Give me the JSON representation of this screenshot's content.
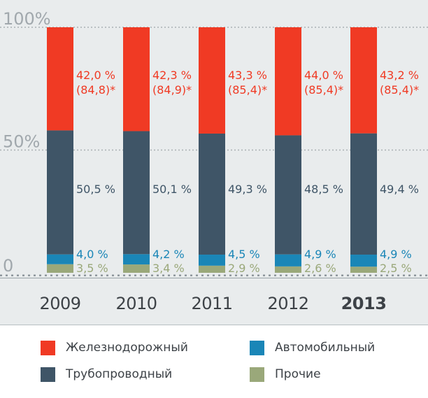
{
  "chart_data": {
    "type": "bar",
    "stacked": true,
    "categories": [
      "2009",
      "2010",
      "2011",
      "2012",
      "2013"
    ],
    "highlight_category": "2013",
    "ylim": [
      0,
      100
    ],
    "yticks": [
      {
        "value": 100,
        "label": "100%"
      },
      {
        "value": 50,
        "label": "50%"
      },
      {
        "value": 0,
        "label": "0"
      }
    ],
    "grid": true,
    "series": [
      {
        "name": "Прочие",
        "color": "#9aa87a",
        "values": [
          3.5,
          3.4,
          2.9,
          2.6,
          2.5
        ],
        "labels": [
          "3,5 %",
          "3,4 %",
          "2,9 %",
          "2,6 %",
          "2,5 %"
        ]
      },
      {
        "name": "Автомобильный",
        "color": "#1a86b7",
        "values": [
          4.0,
          4.2,
          4.5,
          4.9,
          4.9
        ],
        "labels": [
          "4,0 %",
          "4,2 %",
          "4,5 %",
          "4,9 %",
          "4,9 %"
        ]
      },
      {
        "name": "Трубопроводный",
        "color": "#3f5567",
        "values": [
          50.5,
          50.1,
          49.3,
          48.5,
          49.4
        ],
        "labels": [
          "50,5 %",
          "50,1 %",
          "49,3 %",
          "48,5 %",
          "49,4 %"
        ]
      },
      {
        "name": "Железнодорожный",
        "color": "#f03a24",
        "values": [
          42.0,
          42.3,
          43.3,
          44.0,
          43.2
        ],
        "labels": [
          "42,0 %",
          "42,3 %",
          "43,3 %",
          "44,0 %",
          "43,2 %"
        ],
        "sublabels": [
          "(84,8)*",
          "(84,9)*",
          "(85,4)*",
          "(85,4)*",
          "(85,4)*"
        ]
      }
    ],
    "legend_order": [
      "Железнодорожный",
      "Автомобильный",
      "Трубопроводный",
      "Прочие"
    ],
    "legend_placement": "bottom"
  }
}
